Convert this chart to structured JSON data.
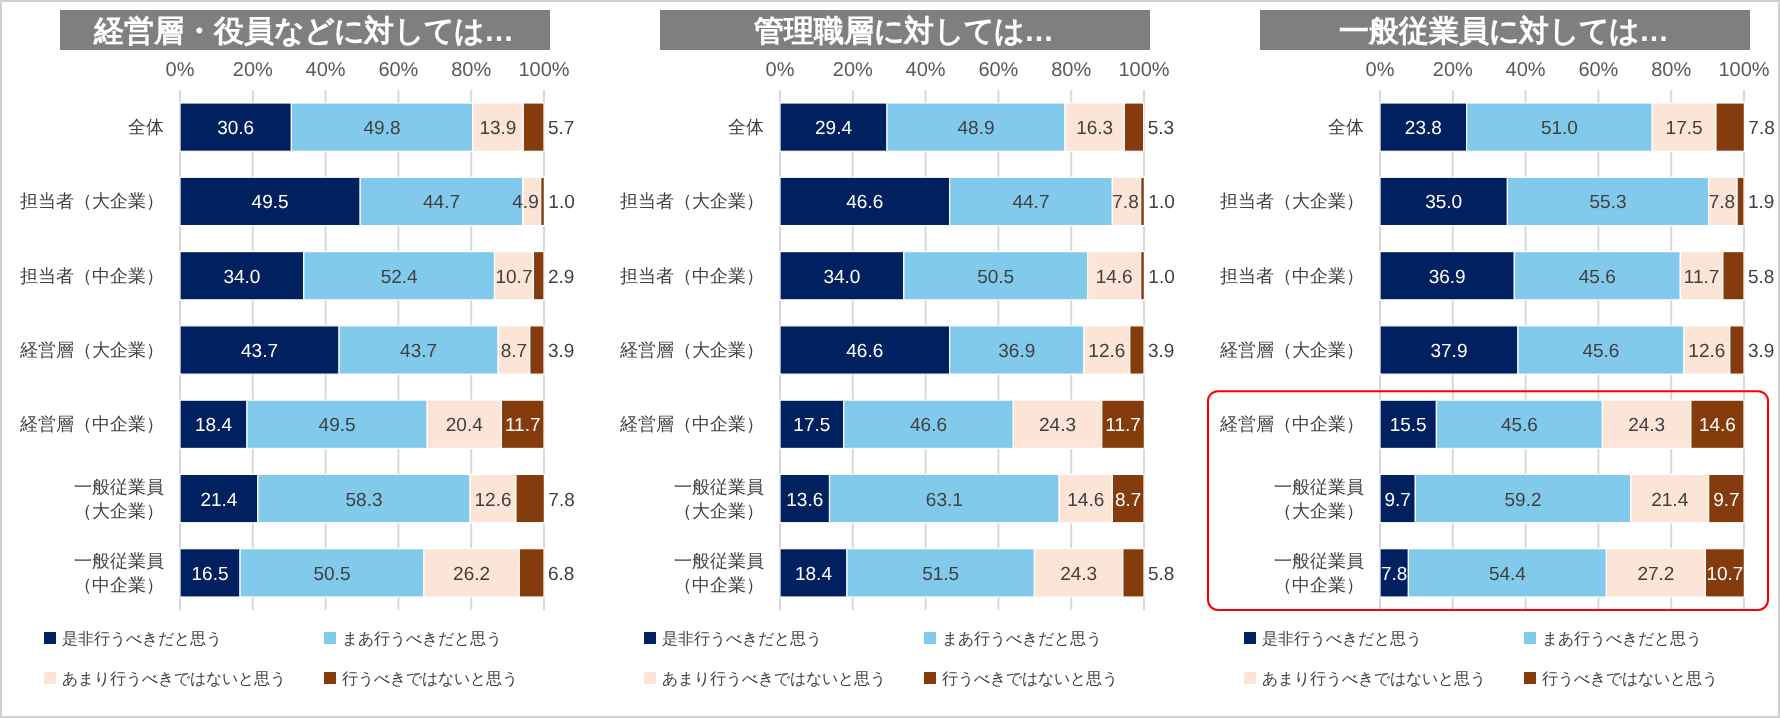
{
  "chart_data": [
    {
      "type": "bar",
      "orientation": "horizontal",
      "stacked": true,
      "title": "経営層・役員などに対しては…",
      "categories": [
        "全体",
        "担当者（大企業）",
        "担当者（中企業）",
        "経営層（大企業）",
        "経営層（中企業）",
        "一般従業員（大企業）",
        "一般従業員（中企業）"
      ],
      "series": [
        {
          "name": "是非行うべきだと思う",
          "color": "#002060",
          "values": [
            30.6,
            49.5,
            34.0,
            43.7,
            18.4,
            21.4,
            16.5
          ],
          "value_labels": [
            "30.6",
            "49.5",
            "34.0",
            "43.7",
            "18.4",
            "21.4",
            "16.5"
          ]
        },
        {
          "name": "まあ行うべきだと思う",
          "color": "#82caeb",
          "values": [
            49.8,
            44.7,
            52.4,
            43.7,
            49.5,
            58.3,
            50.5
          ],
          "value_labels": [
            "49.8",
            "44.7",
            "52.4",
            "43.7",
            "49.5",
            "58.3",
            "50.5"
          ]
        },
        {
          "name": "あまり行うべきではないと思う",
          "color": "#fce4d6",
          "values": [
            13.9,
            4.9,
            10.7,
            8.7,
            20.4,
            12.6,
            26.2
          ],
          "value_labels": [
            "13.9",
            "4.9",
            "10.7",
            "8.7",
            "20.4",
            "12.6",
            "26.2"
          ]
        },
        {
          "name": "行うべきではないと思う",
          "color": "#843c0c",
          "values": [
            5.7,
            1.0,
            2.9,
            3.9,
            11.7,
            7.8,
            6.8
          ],
          "value_labels": [
            "5.7",
            "1.0",
            "2.9",
            "3.9",
            "11.7",
            "7.8",
            "6.8"
          ]
        }
      ],
      "xlim": [
        0,
        100
      ],
      "xticks": [
        {
          "value": 0,
          "label": "0%"
        },
        {
          "value": 20,
          "label": "20%"
        },
        {
          "value": 40,
          "label": "40%"
        },
        {
          "value": 60,
          "label": "60%"
        },
        {
          "value": 80,
          "label": "80%"
        },
        {
          "value": 100,
          "label": "100%"
        }
      ],
      "grid": "x",
      "legend": "bottom"
    },
    {
      "type": "bar",
      "orientation": "horizontal",
      "stacked": true,
      "title": "管理職層に対しては…",
      "categories": [
        "全体",
        "担当者（大企業）",
        "担当者（中企業）",
        "経営層（大企業）",
        "経営層（中企業）",
        "一般従業員（大企業）",
        "一般従業員（中企業）"
      ],
      "series": [
        {
          "name": "是非行うべきだと思う",
          "color": "#002060",
          "values": [
            29.4,
            46.6,
            34.0,
            46.6,
            17.5,
            13.6,
            18.4
          ],
          "value_labels": [
            "29.4",
            "46.6",
            "34.0",
            "46.6",
            "17.5",
            "13.6",
            "18.4"
          ]
        },
        {
          "name": "まあ行うべきだと思う",
          "color": "#82caeb",
          "values": [
            48.9,
            44.7,
            50.5,
            36.9,
            46.6,
            63.1,
            51.5
          ],
          "value_labels": [
            "48.9",
            "44.7",
            "50.5",
            "36.9",
            "46.6",
            "63.1",
            "51.5"
          ]
        },
        {
          "name": "あまり行うべきではないと思う",
          "color": "#fce4d6",
          "values": [
            16.3,
            7.8,
            14.6,
            12.6,
            24.3,
            14.6,
            24.3
          ],
          "value_labels": [
            "16.3",
            "7.8",
            "14.6",
            "12.6",
            "24.3",
            "14.6",
            "24.3"
          ]
        },
        {
          "name": "行うべきではないと思う",
          "color": "#843c0c",
          "values": [
            5.3,
            1.0,
            1.0,
            3.9,
            11.7,
            8.7,
            5.8
          ],
          "value_labels": [
            "5.3",
            "1.0",
            "1.0",
            "3.9",
            "11.7",
            "8.7",
            "5.8"
          ]
        }
      ],
      "xlim": [
        0,
        100
      ],
      "xticks": [
        {
          "value": 0,
          "label": "0%"
        },
        {
          "value": 20,
          "label": "20%"
        },
        {
          "value": 40,
          "label": "40%"
        },
        {
          "value": 60,
          "label": "60%"
        },
        {
          "value": 80,
          "label": "80%"
        },
        {
          "value": 100,
          "label": "100%"
        }
      ],
      "grid": "x",
      "legend": "bottom"
    },
    {
      "type": "bar",
      "orientation": "horizontal",
      "stacked": true,
      "title": "一般従業員に対しては…",
      "categories": [
        "全体",
        "担当者（大企業）",
        "担当者（中企業）",
        "経営層（大企業）",
        "経営層（中企業）",
        "一般従業員（大企業）",
        "一般従業員（中企業）"
      ],
      "series": [
        {
          "name": "是非行うべきだと思う",
          "color": "#002060",
          "values": [
            23.8,
            35.0,
            36.9,
            37.9,
            15.5,
            9.7,
            7.8
          ],
          "value_labels": [
            "23.8",
            "35.0",
            "36.9",
            "37.9",
            "15.5",
            "9.7",
            "7.8"
          ]
        },
        {
          "name": "まあ行うべきだと思う",
          "color": "#82caeb",
          "values": [
            51.0,
            55.3,
            45.6,
            45.6,
            45.6,
            59.2,
            54.4
          ],
          "value_labels": [
            "51.0",
            "55.3",
            "45.6",
            "45.6",
            "45.6",
            "59.2",
            "54.4"
          ]
        },
        {
          "name": "あまり行うべきではないと思う",
          "color": "#fce4d6",
          "values": [
            17.5,
            7.8,
            11.7,
            12.6,
            24.3,
            21.4,
            27.2
          ],
          "value_labels": [
            "17.5",
            "7.8",
            "11.7",
            "12.6",
            "24.3",
            "21.4",
            "27.2"
          ]
        },
        {
          "name": "行うべきではないと思う",
          "color": "#843c0c",
          "values": [
            7.8,
            1.9,
            5.8,
            3.9,
            14.6,
            9.7,
            10.7
          ],
          "value_labels": [
            "7.8",
            "1.9",
            "5.8",
            "3.9",
            "14.6",
            "9.7",
            "10.7"
          ]
        }
      ],
      "xlim": [
        0,
        100
      ],
      "xticks": [
        {
          "value": 0,
          "label": "0%"
        },
        {
          "value": 20,
          "label": "20%"
        },
        {
          "value": 40,
          "label": "40%"
        },
        {
          "value": 60,
          "label": "60%"
        },
        {
          "value": 80,
          "label": "80%"
        },
        {
          "value": 100,
          "label": "100%"
        }
      ],
      "grid": "x",
      "legend": "bottom"
    }
  ]
}
